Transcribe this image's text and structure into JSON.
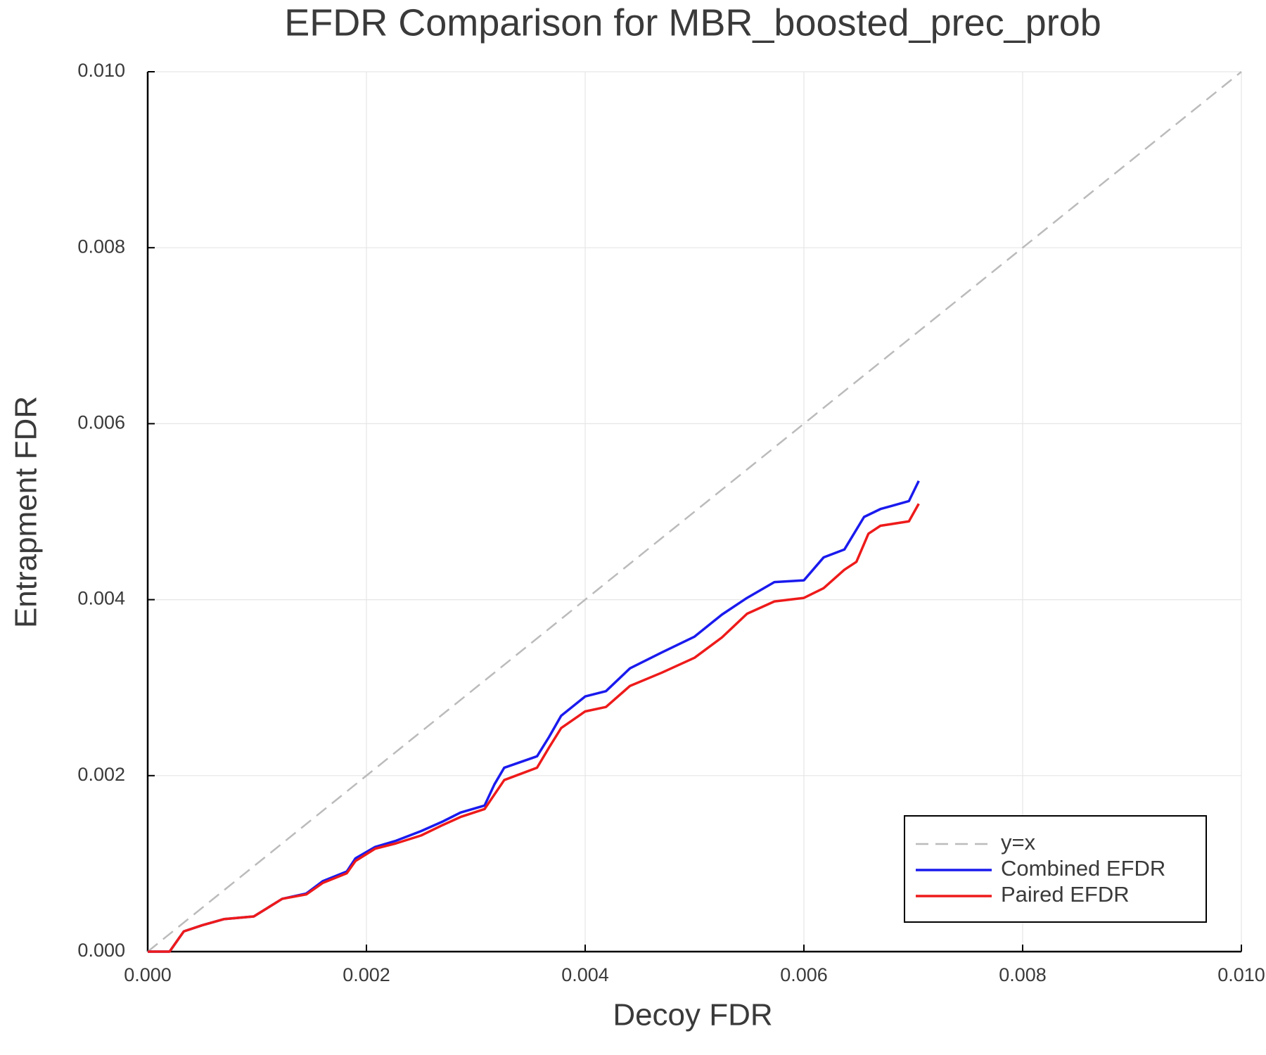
{
  "chart_data": {
    "type": "line",
    "title": "EFDR Comparison for MBR_boosted_prec_prob",
    "x_label": "Decoy FDR",
    "y_label": "Entrapment FDR",
    "xlim": [
      0,
      0.01
    ],
    "ylim": [
      0,
      0.01
    ],
    "xticks": [
      {
        "value": 0,
        "label": "0.000"
      },
      0.002,
      0.004,
      0.006,
      0.008,
      {
        "value": 0.01,
        "label": "0.010"
      }
    ],
    "yticks": [
      {
        "value": 0,
        "label": "0.000"
      },
      0.002,
      0.004,
      0.006,
      0.008,
      {
        "value": 0.01,
        "label": "0.010"
      }
    ],
    "grid": true,
    "legend": "bottom right",
    "series": [
      {
        "name": "y=x",
        "color": "#bbbbbb",
        "dashed": true,
        "x": [
          0,
          0.01
        ],
        "values": [
          0,
          0.01
        ]
      },
      {
        "name": "Combined EFDR",
        "color": "#1a1aee",
        "x": [
          0,
          0.0002,
          0.00033,
          0.0005,
          0.0007,
          0.00097,
          0.0011,
          0.00123,
          0.00145,
          0.0016,
          0.00182,
          0.0019,
          0.00208,
          0.00227,
          0.0025,
          0.0027,
          0.00286,
          0.00308,
          0.00317,
          0.00326,
          0.00356,
          0.00367,
          0.00378,
          0.004,
          0.00419,
          0.00441,
          0.0047,
          0.005,
          0.00525,
          0.00548,
          0.00573,
          0.006,
          0.00618,
          0.00637,
          0.00655,
          0.0067,
          0.00696,
          0.00705
        ],
        "values": [
          0,
          0,
          0.00023,
          0.0003,
          0.00037,
          0.0004,
          0.0005,
          0.0006,
          0.00066,
          0.0008,
          0.00091,
          0.00106,
          0.00119,
          0.00126,
          0.00137,
          0.00148,
          0.00158,
          0.00166,
          0.0019,
          0.00209,
          0.00222,
          0.00244,
          0.00268,
          0.0029,
          0.00296,
          0.00322,
          0.0034,
          0.00358,
          0.00383,
          0.00402,
          0.0042,
          0.00422,
          0.00448,
          0.00457,
          0.00494,
          0.00503,
          0.00512,
          0.00535
        ]
      },
      {
        "name": "Paired EFDR",
        "color": "#ee1a1a",
        "x": [
          0,
          0.0002,
          0.00033,
          0.0005,
          0.0007,
          0.00097,
          0.0011,
          0.00123,
          0.00145,
          0.0016,
          0.00182,
          0.0019,
          0.00208,
          0.00227,
          0.0025,
          0.0027,
          0.00286,
          0.00308,
          0.00326,
          0.00356,
          0.00367,
          0.00378,
          0.004,
          0.00419,
          0.00441,
          0.0047,
          0.005,
          0.00525,
          0.00548,
          0.00573,
          0.006,
          0.00618,
          0.00637,
          0.00648,
          0.00659,
          0.0067,
          0.00696,
          0.00705
        ],
        "values": [
          0,
          0,
          0.00023,
          0.0003,
          0.00037,
          0.0004,
          0.0005,
          0.0006,
          0.00065,
          0.00078,
          0.00089,
          0.00103,
          0.00117,
          0.00123,
          0.00132,
          0.00144,
          0.00153,
          0.00162,
          0.00195,
          0.00209,
          0.00232,
          0.00254,
          0.00273,
          0.00278,
          0.00302,
          0.00317,
          0.00334,
          0.00357,
          0.00384,
          0.00398,
          0.00402,
          0.00413,
          0.00434,
          0.00443,
          0.00475,
          0.00484,
          0.00489,
          0.00509
        ]
      }
    ]
  }
}
